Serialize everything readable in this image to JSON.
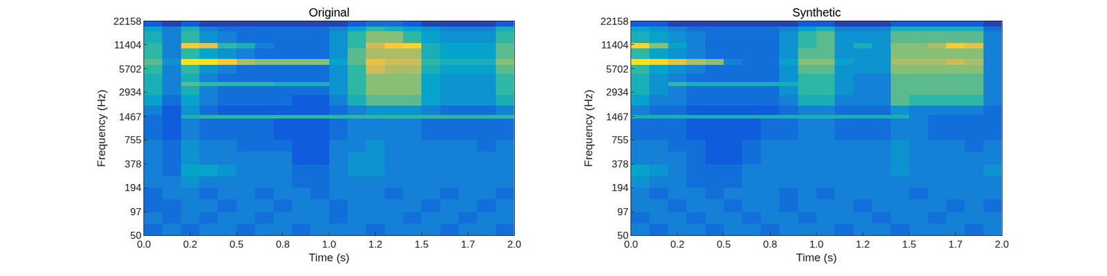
{
  "chart_data": [
    {
      "type": "heatmap",
      "title": "Original",
      "x_label": "Time (s)",
      "y_label": "Frequency (Hz)",
      "log": "y",
      "grid": false,
      "tick_labels": true,
      "xlim": [
        0,
        2
      ],
      "ylim": [
        50,
        22158
      ],
      "zlim": [
        1,
        11
      ],
      "xticks": [
        {
          "value": 0,
          "label": "0.0"
        },
        {
          "value": 0.25,
          "label": "0.2"
        },
        0.5,
        {
          "value": 0.75,
          "label": "0.8"
        },
        {
          "value": 1,
          "label": "1.0"
        },
        {
          "value": 1.25,
          "label": "1.2"
        },
        1.5,
        {
          "value": 1.75,
          "label": "1.7"
        },
        {
          "value": 2,
          "label": "2.0"
        }
      ],
      "yticks": [
        50,
        97,
        194,
        378,
        755,
        1467,
        2934,
        5702,
        11404,
        22158
      ],
      "x_edges": [
        0,
        0.1,
        0.2,
        0.3,
        0.4,
        0.5,
        0.6,
        0.7,
        0.8,
        0.9,
        1.0,
        1.1,
        1.2,
        1.3,
        1.4,
        1.5,
        1.6,
        1.7,
        1.8,
        1.9,
        2.0
      ],
      "y_edges": [
        50,
        70,
        97,
        140,
        194,
        270,
        378,
        540,
        755,
        1050,
        1400,
        1540,
        2000,
        2700,
        3500,
        3900,
        5000,
        6400,
        7600,
        10200,
        12000,
        16600,
        19000,
        22158
      ],
      "z": [
        [
          2.5,
          3,
          2.5,
          3,
          3,
          2.5,
          3,
          3,
          2.5,
          3,
          3,
          3,
          2.5,
          3,
          3,
          3,
          2.5,
          3,
          3,
          2.5
        ],
        [
          3,
          2.5,
          3,
          2.5,
          3,
          3,
          2.5,
          3,
          3,
          3,
          2.5,
          3,
          3,
          3,
          2.5,
          3,
          3,
          2.5,
          3,
          3
        ],
        [
          2.5,
          2.5,
          3,
          3,
          2.5,
          3,
          3,
          2.5,
          3,
          3,
          2.5,
          3,
          3,
          3,
          3,
          2.5,
          3,
          3,
          2.5,
          3
        ],
        [
          2.5,
          3,
          3,
          2.5,
          3,
          3,
          2.5,
          3,
          3,
          2.5,
          3,
          3,
          3,
          2.5,
          3,
          3,
          2.5,
          3,
          3,
          2.5
        ],
        [
          3,
          3,
          3.5,
          3,
          3,
          3,
          3,
          3,
          2.5,
          2.5,
          3,
          3,
          3,
          3,
          3,
          3,
          3,
          3,
          3,
          3
        ],
        [
          3,
          2.5,
          4,
          4,
          3.5,
          3,
          3,
          3,
          2.5,
          2.5,
          3,
          3.5,
          3.5,
          3,
          3,
          3,
          3,
          3,
          3,
          3
        ],
        [
          3,
          2.5,
          3.5,
          3,
          3,
          3,
          3,
          3,
          2,
          2,
          3,
          3.5,
          3.5,
          3,
          3,
          3,
          3,
          3,
          3,
          3
        ],
        [
          3,
          2.5,
          3.5,
          3,
          3,
          2.5,
          2.5,
          2.5,
          2,
          2,
          3,
          3,
          3.5,
          3,
          3,
          3,
          3,
          3,
          2.5,
          3
        ],
        [
          2.5,
          2,
          3,
          2.5,
          2.5,
          2.5,
          2.5,
          2,
          2,
          2,
          2.5,
          3,
          3,
          3,
          3,
          2.5,
          2.5,
          2.5,
          2.5,
          2.5
        ],
        [
          2.5,
          2,
          3,
          2.5,
          2.5,
          2.5,
          2.5,
          2,
          2,
          2,
          2.5,
          3,
          3,
          3,
          3,
          2.5,
          2.5,
          2.5,
          2.5,
          2.5
        ],
        [
          2.5,
          2,
          4.5,
          5,
          5,
          5,
          5,
          5,
          5,
          5,
          5,
          5,
          5,
          5,
          5,
          5,
          5,
          5,
          5,
          5
        ],
        [
          3,
          2,
          3.5,
          2.5,
          2,
          2,
          2,
          2,
          2,
          2,
          2.5,
          3,
          3.5,
          3.5,
          3.5,
          3,
          2.5,
          2.5,
          2.5,
          3
        ],
        [
          4,
          2.5,
          4,
          3,
          2.5,
          2.5,
          2.5,
          2.5,
          2,
          2,
          3,
          4.5,
          5.5,
          5.5,
          5.5,
          4,
          3.5,
          3.5,
          3.5,
          4.5
        ],
        [
          4.5,
          3,
          4.5,
          3,
          2.5,
          2.5,
          2.5,
          2.5,
          2.5,
          2.5,
          3.5,
          5,
          6,
          6,
          6,
          4,
          3.5,
          3.5,
          3.5,
          5
        ],
        [
          4.5,
          3,
          5.5,
          5,
          5,
          5,
          5,
          4.5,
          4.5,
          4.5,
          3.5,
          5,
          6,
          6,
          6,
          4,
          3.5,
          3.5,
          3.5,
          5
        ],
        [
          4.5,
          3,
          4.5,
          3,
          2.5,
          2.5,
          2.5,
          2.5,
          2.5,
          2.5,
          3.5,
          5,
          6,
          6,
          6,
          4,
          3.5,
          3.5,
          3.5,
          5
        ],
        [
          5,
          3,
          5,
          3.5,
          3,
          2.5,
          2.5,
          2.5,
          2.5,
          2.5,
          3.5,
          5,
          7,
          6.5,
          6.5,
          4.5,
          4,
          4,
          4,
          5.5
        ],
        [
          5.5,
          3.5,
          9,
          9,
          8,
          6.5,
          6,
          6,
          6,
          6,
          4,
          5.5,
          7.5,
          7,
          7,
          5,
          4.5,
          4.5,
          4.5,
          6
        ],
        [
          5,
          3,
          5,
          4,
          3.5,
          3,
          2.5,
          2.5,
          2.5,
          2.5,
          3.5,
          5.5,
          6.5,
          6.5,
          6.5,
          4.5,
          4,
          4,
          4,
          5.5
        ],
        [
          5,
          3,
          8,
          7.5,
          5,
          4.5,
          3,
          2.5,
          2.5,
          2.5,
          3.5,
          5,
          7,
          8,
          8.5,
          4.5,
          4,
          4,
          4,
          5.5
        ],
        [
          4.5,
          3,
          5,
          3.5,
          3,
          2.5,
          2.5,
          2.5,
          2.5,
          2.5,
          3.5,
          5,
          6,
          6,
          5,
          4,
          3.5,
          3.5,
          3.5,
          5
        ],
        [
          4,
          3,
          4.5,
          3,
          2.5,
          2.5,
          2.5,
          2.5,
          2.5,
          2.5,
          3,
          4,
          5,
          4.5,
          4,
          3.5,
          3,
          3,
          3,
          4.5
        ],
        [
          2,
          1.5,
          2,
          1.5,
          1.5,
          1.5,
          1.5,
          1.5,
          1.5,
          1.5,
          1.5,
          2,
          2.5,
          2.5,
          2,
          1.5,
          1.5,
          1.5,
          1.5,
          2
        ]
      ]
    },
    {
      "type": "heatmap",
      "title": "Synthetic",
      "x_label": "Time (s)",
      "y_label": "Frequency (Hz)",
      "log": "y",
      "grid": false,
      "tick_labels": true,
      "xlim": [
        0,
        2
      ],
      "ylim": [
        50,
        22158
      ],
      "zlim": [
        1,
        11
      ],
      "xticks": [
        {
          "value": 0,
          "label": "0.0"
        },
        {
          "value": 0.25,
          "label": "0.2"
        },
        0.5,
        {
          "value": 0.75,
          "label": "0.8"
        },
        {
          "value": 1,
          "label": "1.0"
        },
        {
          "value": 1.25,
          "label": "1.2"
        },
        1.5,
        {
          "value": 1.75,
          "label": "1.7"
        },
        {
          "value": 2,
          "label": "2.0"
        }
      ],
      "yticks": [
        50,
        97,
        194,
        378,
        755,
        1467,
        2934,
        5702,
        11404,
        22158
      ],
      "x_edges": [
        0,
        0.1,
        0.2,
        0.3,
        0.4,
        0.5,
        0.6,
        0.7,
        0.8,
        0.9,
        1.0,
        1.1,
        1.2,
        1.3,
        1.4,
        1.5,
        1.6,
        1.7,
        1.8,
        1.9,
        2.0
      ],
      "y_edges": [
        50,
        70,
        97,
        140,
        194,
        270,
        378,
        540,
        755,
        1050,
        1400,
        1540,
        2000,
        2700,
        3500,
        3900,
        5000,
        6400,
        7600,
        10200,
        12000,
        16600,
        19000,
        22158
      ],
      "z": [
        [
          3,
          2.5,
          3,
          3,
          2.5,
          3,
          3,
          2.5,
          3,
          3,
          3,
          2.5,
          3,
          3,
          2.5,
          3,
          3,
          3,
          2.5,
          3
        ],
        [
          2.5,
          3,
          3,
          2.5,
          3,
          3,
          2.5,
          3,
          3,
          2.5,
          3,
          3,
          3,
          2.5,
          3,
          3,
          2.5,
          3,
          3,
          3
        ],
        [
          3,
          3,
          2.5,
          3,
          3,
          2.5,
          3,
          3,
          2.5,
          3,
          3,
          3,
          2.5,
          3,
          3,
          3,
          3,
          2.5,
          3,
          2.5
        ],
        [
          3,
          2.5,
          3,
          3,
          2.5,
          3,
          3,
          3,
          2.5,
          3,
          2.5,
          3,
          3,
          3,
          3,
          2.5,
          3,
          3,
          3,
          3
        ],
        [
          3.5,
          3,
          3,
          2.5,
          2.5,
          2.5,
          3,
          3,
          3,
          3,
          3,
          3,
          3,
          3,
          3,
          3,
          3,
          3,
          3,
          3
        ],
        [
          4,
          3.5,
          3,
          2.5,
          2.5,
          2.5,
          3,
          3,
          3,
          3,
          3,
          3,
          3,
          3,
          3.5,
          3,
          3,
          3,
          3,
          3.5
        ],
        [
          3,
          3,
          3,
          2.5,
          2,
          2,
          2.5,
          3,
          3,
          3,
          3,
          3,
          3,
          3,
          3.5,
          3,
          3,
          3,
          3,
          3
        ],
        [
          3,
          3,
          2.5,
          2.5,
          2,
          2,
          2.5,
          3,
          3,
          3,
          3,
          3,
          3,
          3,
          3.5,
          3,
          3,
          3,
          2.5,
          3
        ],
        [
          2.5,
          2.5,
          2.5,
          2,
          2,
          2,
          2,
          2.5,
          2.5,
          3,
          3,
          2.5,
          2.5,
          2.5,
          3,
          3,
          2.5,
          2.5,
          2.5,
          2.5
        ],
        [
          2.5,
          2.5,
          2.5,
          2,
          2,
          2,
          2,
          2.5,
          2.5,
          3,
          3,
          2.5,
          2.5,
          2.5,
          3,
          3,
          2.5,
          2.5,
          2.5,
          2.5
        ],
        [
          4.5,
          4.5,
          4.5,
          4.5,
          4.5,
          4.5,
          4.5,
          4.5,
          4.5,
          4.5,
          4.5,
          4.5,
          4.5,
          4.5,
          4.5,
          3,
          2.5,
          2.5,
          2.5,
          2.5
        ],
        [
          3,
          2.5,
          2.5,
          2,
          2,
          2,
          2,
          2,
          2.5,
          3,
          3,
          2.5,
          2.5,
          2.5,
          3.5,
          3,
          3,
          3,
          3,
          2.5
        ],
        [
          4,
          3,
          3,
          2.5,
          2.5,
          2.5,
          2.5,
          2.5,
          3,
          4.5,
          4.5,
          3,
          3,
          3,
          5.5,
          5,
          5,
          5,
          5,
          3
        ],
        [
          4.5,
          3.5,
          3,
          2.5,
          2.5,
          2.5,
          2.5,
          2.5,
          3.5,
          5,
          5,
          3.5,
          3,
          3,
          5.5,
          5.5,
          5.5,
          5.5,
          5.5,
          3
        ],
        [
          4.5,
          3.5,
          5,
          4.5,
          4.5,
          4.5,
          4.5,
          4.5,
          4.5,
          5,
          5,
          3.5,
          3,
          3,
          5.5,
          5.5,
          5.5,
          5.5,
          5.5,
          3
        ],
        [
          4.5,
          3.5,
          3,
          2.5,
          2.5,
          2.5,
          2.5,
          2.5,
          3.5,
          5,
          5,
          3.5,
          3,
          3,
          5.5,
          5.5,
          5.5,
          5.5,
          5.5,
          3
        ],
        [
          5,
          4,
          3.5,
          3,
          2.5,
          2.5,
          2.5,
          2.5,
          3.5,
          5.5,
          5.5,
          3.5,
          3.5,
          3.5,
          6,
          6,
          6,
          6,
          6,
          3
        ],
        [
          9,
          8.5,
          7.5,
          6.5,
          6,
          3,
          2.5,
          2.5,
          4,
          6,
          6,
          4,
          3.5,
          3.5,
          6.5,
          6.5,
          6.5,
          7,
          6.5,
          3
        ],
        [
          5,
          4,
          3.5,
          3,
          2.5,
          2.5,
          2.5,
          2.5,
          3.5,
          5.5,
          5.5,
          3.5,
          3.5,
          3.5,
          6,
          6,
          6,
          6,
          6,
          3
        ],
        [
          8.5,
          6,
          4,
          3,
          2.5,
          2.5,
          2.5,
          2.5,
          3.5,
          5,
          5.5,
          3.5,
          4.5,
          3.5,
          6,
          6,
          6.5,
          8,
          7.5,
          3
        ],
        [
          4.5,
          4,
          3.5,
          3,
          2.5,
          2.5,
          2.5,
          2.5,
          3.5,
          5,
          5.5,
          3.5,
          3.5,
          3.5,
          5.5,
          5.5,
          5.5,
          5.5,
          5.5,
          3
        ],
        [
          4,
          3.5,
          3,
          2.5,
          2.5,
          2.5,
          2.5,
          2.5,
          3,
          4,
          4.5,
          3,
          3,
          3,
          4.5,
          4.5,
          4.5,
          4.5,
          4.5,
          2.5
        ],
        [
          2,
          2,
          1.5,
          1.5,
          1.5,
          1.5,
          1.5,
          1.5,
          1.5,
          2,
          2,
          1.5,
          1.5,
          1.5,
          2,
          2,
          2,
          2,
          2,
          1.5
        ]
      ]
    }
  ]
}
